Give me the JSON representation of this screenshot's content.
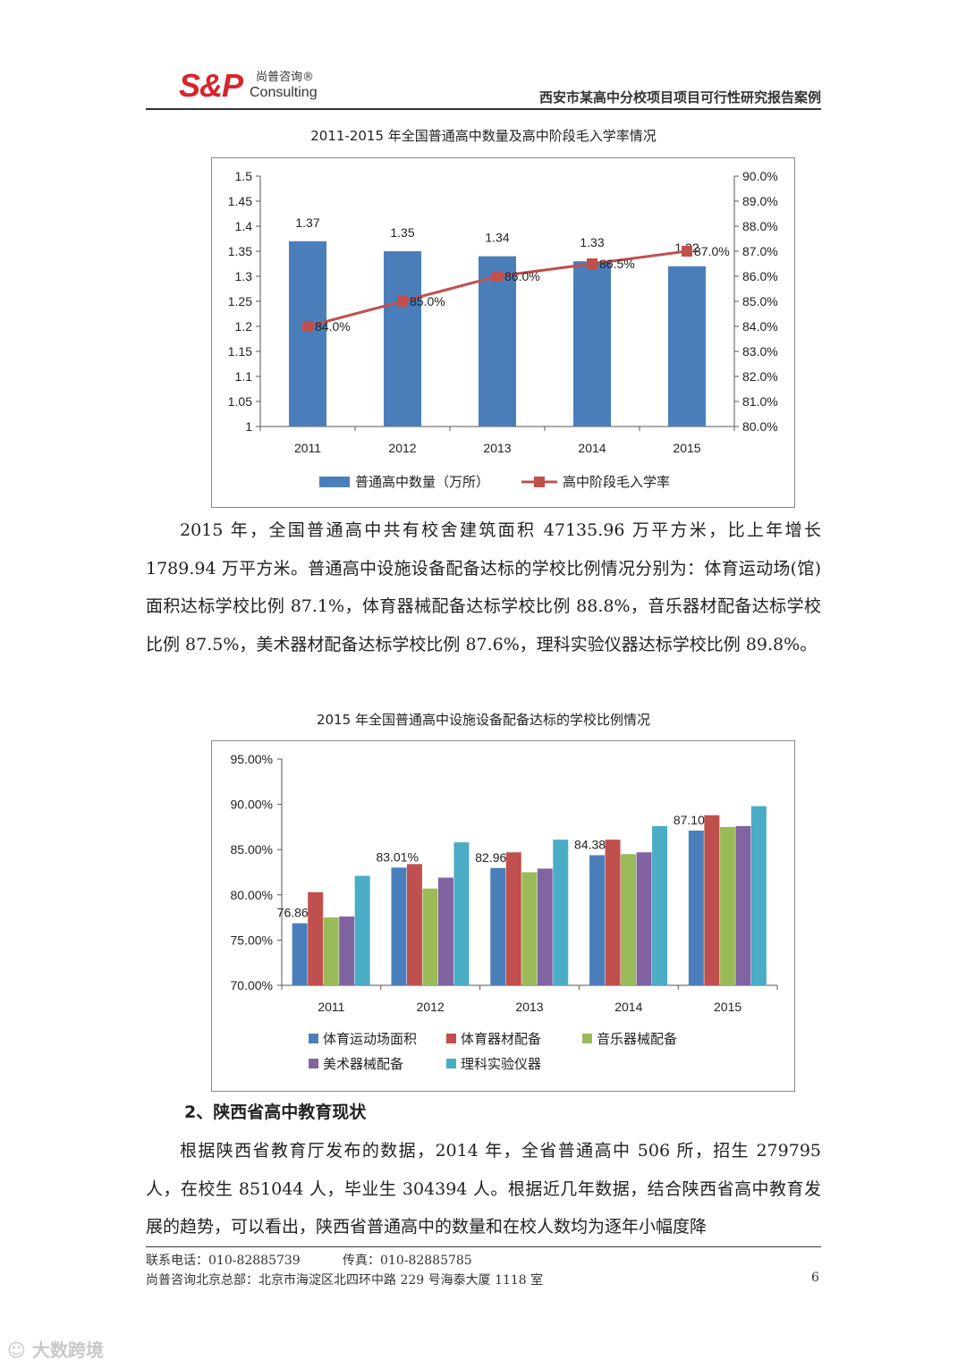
{
  "header": {
    "logo_mark": "S&P",
    "logo_cn": "尚普咨询®",
    "logo_en": "Consulting",
    "doc_title": "西安市某高中分校项目项目可行性研究报告案例"
  },
  "charts": [
    {
      "type": "bar+line",
      "title": "2011-2015 年全国普通高中数量及高中阶段毛入学率情况",
      "categories": [
        "2011",
        "2012",
        "2013",
        "2014",
        "2015"
      ],
      "y_left_ticks": [
        "1.5",
        "1.45",
        "1.4",
        "1.35",
        "1.3",
        "1.25",
        "1.2",
        "1.15",
        "1.1",
        "1.05",
        "1"
      ],
      "y_right_ticks": [
        "90.0%",
        "89.0%",
        "88.0%",
        "87.0%",
        "86.0%",
        "85.0%",
        "84.0%",
        "83.0%",
        "82.0%",
        "81.0%",
        "80.0%"
      ],
      "ylim_left": [
        1,
        1.5
      ],
      "ylim_right": [
        80,
        90
      ],
      "bar_series": {
        "name": "普通高中数量（万所）",
        "values": [
          1.37,
          1.35,
          1.34,
          1.33,
          1.32
        ],
        "labels": [
          "1.37",
          "1.35",
          "1.34",
          "1.33",
          "1.32"
        ],
        "color": "#4a7ebb"
      },
      "line_series": {
        "name": "高中阶段毛入学率",
        "values": [
          84.0,
          85.0,
          86.0,
          86.5,
          87.0
        ],
        "labels": [
          "84.0%",
          "85.0%",
          "86.0%",
          "86.5%",
          "87.0%"
        ],
        "color": "#c0504d"
      },
      "legend_position": "bottom"
    },
    {
      "type": "bar",
      "title": "2015 年全国普通高中设施设备配备达标的学校比例情况",
      "categories": [
        "2011",
        "2012",
        "2013",
        "2014",
        "2015"
      ],
      "y_ticks": [
        "95.00%",
        "90.00%",
        "85.00%",
        "80.00%",
        "75.00%",
        "70.00%"
      ],
      "ylim": [
        70,
        95
      ],
      "series": [
        {
          "name": "体育运动场面积",
          "values": [
            76.86,
            83.01,
            82.96,
            84.38,
            87.1
          ],
          "labels": [
            "76.86%",
            "83.01%",
            "82.96%",
            "84.38%",
            "87.10%"
          ],
          "color": "#4a7ebb"
        },
        {
          "name": "体育器材配备",
          "values": [
            80.3,
            83.4,
            84.7,
            86.1,
            88.8
          ],
          "color": "#c0504d"
        },
        {
          "name": "音乐器械配备",
          "values": [
            77.5,
            80.7,
            82.5,
            84.5,
            87.5
          ],
          "color": "#9bbb59"
        },
        {
          "name": "美术器械配备",
          "values": [
            77.6,
            81.9,
            82.9,
            84.7,
            87.6
          ],
          "color": "#8064a2"
        },
        {
          "name": "理科实验仪器",
          "values": [
            82.1,
            85.8,
            86.1,
            87.6,
            89.8
          ],
          "color": "#4bacc6"
        }
      ],
      "legend_position": "bottom"
    }
  ],
  "body": {
    "para1": "2015 年，全国普通高中共有校舍建筑面积 47135.96 万平方米，比上年增长 1789.94 万平方米。普通高中设施设备配备达标的学校比例情况分别为：体育运动场(馆)面积达标学校比例 87.1%，体育器械配备达标学校比例 88.8%，音乐器材配备达标学校比例 87.5%，美术器材配备达标学校比例 87.6%，理科实验仪器达标学校比例 89.8%。",
    "heading2": "2、陕西省高中教育现状",
    "para2": "根据陕西省教育厅发布的数据，2014 年，全省普通高中 506 所，招生 279795 人，在校生 851044 人，毕业生 304394 人。根据近几年数据，结合陕西省高中教育发展的趋势，可以看出，陕西省普通高中的数量和在校人数均为逐年小幅度降"
  },
  "footer": {
    "phone": "联系电话：010-82885739",
    "fax": "传真：010-82885785",
    "address": "尚普咨询北京总部：北京市海淀区北四环中路 229 号海泰大厦 1118 室",
    "page_number": "6"
  },
  "watermark": "大数跨境"
}
